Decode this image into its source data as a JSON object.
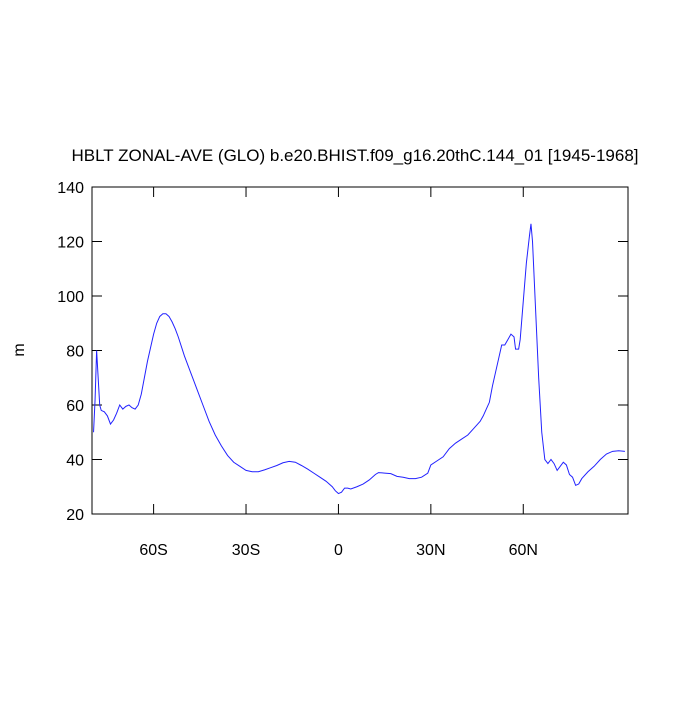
{
  "chart_data": {
    "type": "line",
    "title": "HBLT ZONAL-AVE (GLO) b.e20.BHIST.f09_g16.20thC.144_01 [1945-1968]",
    "ylabel": "m",
    "x": [
      -79.5,
      -79,
      -78.5,
      -78,
      -77.5,
      -77,
      -76,
      -75,
      -74,
      -73,
      -72,
      -71,
      -70,
      -69,
      -68,
      -67,
      -66,
      -65,
      -64,
      -63,
      -62,
      -61,
      -60,
      -59,
      -58,
      -57,
      -56,
      -55,
      -54,
      -53,
      -52,
      -50,
      -48,
      -46,
      -44,
      -42,
      -40,
      -38,
      -36,
      -34,
      -32,
      -30,
      -28,
      -26,
      -24,
      -22,
      -20,
      -18,
      -16,
      -14,
      -12,
      -10,
      -8,
      -6,
      -4,
      -2,
      -1,
      0,
      1,
      2,
      3,
      4,
      6,
      8,
      10,
      12,
      13,
      15,
      17,
      19,
      21,
      23,
      25,
      27,
      29,
      30,
      32,
      34,
      36,
      38,
      40,
      42,
      44,
      46,
      47,
      48,
      49,
      50,
      51,
      52,
      53,
      54,
      55,
      56,
      57,
      57.5,
      58.5,
      59,
      60,
      61,
      62,
      62.5,
      63,
      64,
      65,
      66,
      67,
      68,
      69,
      70,
      71,
      72,
      73,
      74,
      75,
      76,
      77,
      78,
      79,
      81,
      83,
      85,
      87,
      89,
      91,
      93
    ],
    "series": [
      {
        "color": "#2222ff",
        "values": [
          50,
          62,
          80,
          70,
          60,
          58,
          57.5,
          56,
          53,
          54.5,
          57,
          60,
          58.5,
          59.5,
          60,
          59,
          58.5,
          60,
          64,
          70,
          76,
          81,
          86,
          90,
          92.5,
          93.5,
          93.5,
          92.5,
          90.5,
          88,
          85,
          78,
          72,
          66,
          60,
          54,
          49,
          45,
          41.5,
          39,
          37.5,
          36,
          35.5,
          35.5,
          36.2,
          37,
          37.8,
          38.8,
          39.3,
          39,
          37.8,
          36.5,
          35,
          33.5,
          32,
          30,
          28.5,
          27.5,
          28,
          29.5,
          29.5,
          29.2,
          30,
          31,
          32.5,
          34.5,
          35.2,
          35,
          34.8,
          33.8,
          33.5,
          33,
          33,
          33.5,
          35,
          38,
          39.5,
          41,
          44,
          46,
          47.5,
          49,
          51.5,
          54,
          56,
          58.5,
          61,
          67,
          72,
          77,
          82,
          82,
          84,
          86,
          85,
          80.5,
          80.5,
          84,
          98,
          112,
          122,
          126.5,
          120,
          95,
          70,
          50,
          40,
          38.5,
          40,
          38.5,
          36,
          37.5,
          39,
          38,
          34.5,
          33.5,
          30.5,
          31,
          33,
          35.5,
          37.5,
          40,
          42,
          43,
          43.2,
          43
        ]
      }
    ],
    "xlim": [
      -80,
      94
    ],
    "xticks": [
      {
        "value": -60,
        "label": "60S"
      },
      {
        "value": -30,
        "label": "30S"
      },
      0,
      {
        "value": 30,
        "label": "30N"
      },
      {
        "value": 60,
        "label": "60N"
      }
    ],
    "ylim": [
      20,
      140
    ],
    "yticks": [
      20,
      40,
      60,
      80,
      100,
      120,
      140
    ]
  }
}
